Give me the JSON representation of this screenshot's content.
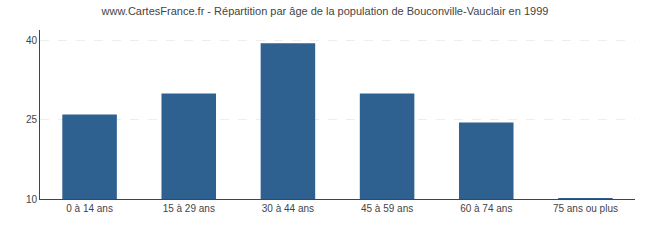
{
  "chart_data": {
    "type": "bar",
    "title": "www.CartesFrance.fr - Répartition par âge de la population de Bouconville-Vauclair en 1999",
    "categories": [
      "0 à 14 ans",
      "15 à 29 ans",
      "30 à 44 ans",
      "45 à 59 ans",
      "60 à 74 ans",
      "75 ans ou plus"
    ],
    "values": [
      26,
      30,
      39.5,
      30,
      24.5,
      10.2
    ],
    "color": "#2e6090",
    "ylim": [
      10,
      42
    ],
    "yticks": [
      10,
      25,
      40
    ],
    "grid": true
  }
}
